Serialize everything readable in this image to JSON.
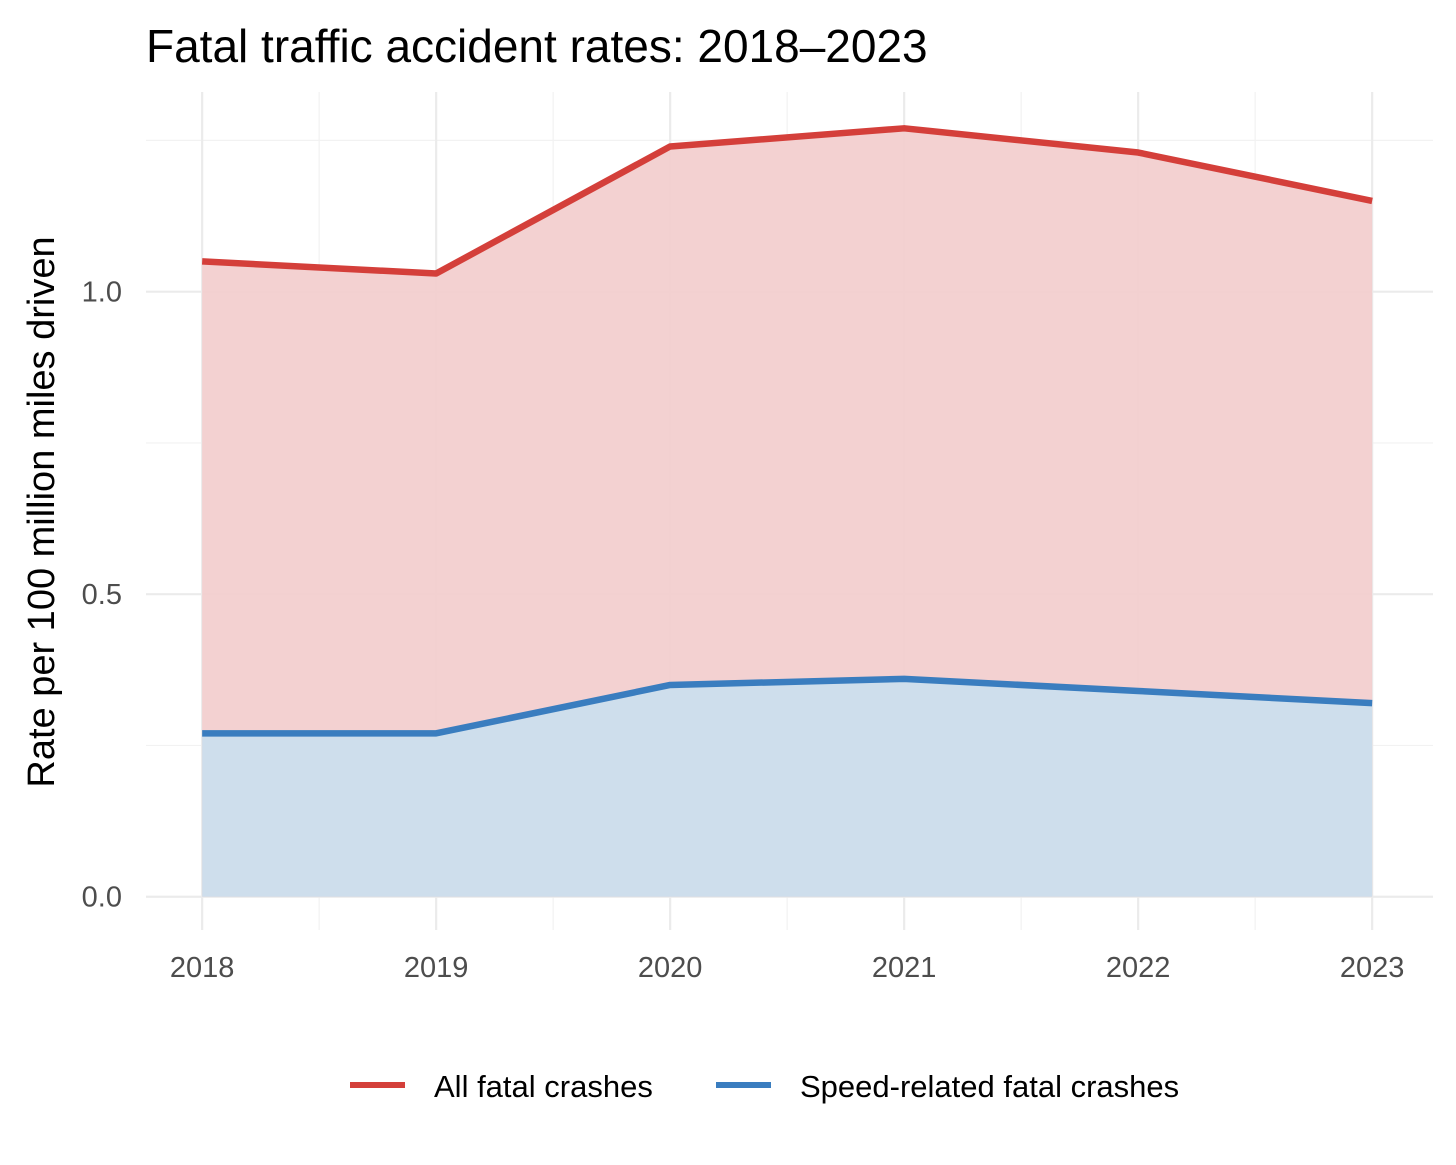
{
  "chart_data": {
    "type": "area",
    "title": "Fatal traffic accident rates: 2018–2023",
    "xlabel": "",
    "ylabel": "Rate per 100 million miles driven",
    "x": [
      2018,
      2019,
      2020,
      2021,
      2022,
      2023
    ],
    "x_tick_labels": [
      "2018",
      "2019",
      "2020",
      "2021",
      "2022",
      "2023"
    ],
    "y_tick_values": [
      0,
      0.5,
      1.0
    ],
    "y_tick_labels": [
      "0.0",
      "0.5",
      "1.0"
    ],
    "xlim": [
      2017.76,
      2023.26
    ],
    "ylim": [
      -0.055,
      1.33
    ],
    "grid": true,
    "legend_position": "bottom",
    "series": [
      {
        "name": "All fatal crashes",
        "values": [
          1.05,
          1.03,
          1.24,
          1.27,
          1.23,
          1.15
        ],
        "color": "#d43f3a",
        "fill": "#f2cfcf"
      },
      {
        "name": "Speed-related fatal crashes",
        "values": [
          0.27,
          0.27,
          0.35,
          0.36,
          0.34,
          0.32
        ],
        "color": "#3a7dbf",
        "fill": "#cbdeed"
      }
    ]
  }
}
